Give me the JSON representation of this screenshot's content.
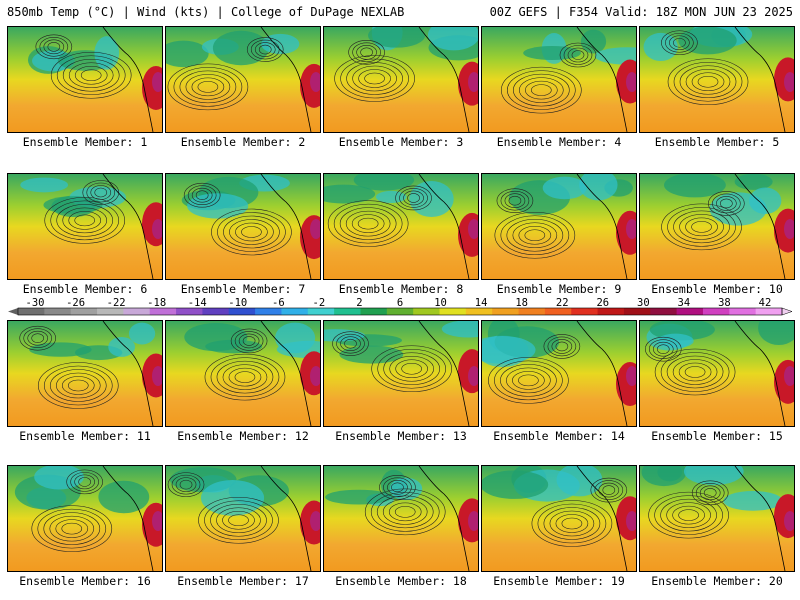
{
  "header": {
    "left": "850mb Temp (°C) | Wind (kts) | College of DuPage NEXLAB",
    "right": "00Z GEFS | F354 Valid: 18Z MON JUN 23 2025"
  },
  "member_label_prefix": "Ensemble Member:",
  "members": [
    "1",
    "2",
    "3",
    "4",
    "5",
    "6",
    "7",
    "8",
    "9",
    "10",
    "11",
    "12",
    "13",
    "14",
    "15",
    "16",
    "17",
    "18",
    "19",
    "20"
  ],
  "colorbar": {
    "tick_labels": [
      "-30",
      "-26",
      "-22",
      "-18",
      "-14",
      "-10",
      "-6",
      "-2",
      "2",
      "6",
      "10",
      "14",
      "18",
      "22",
      "26",
      "30",
      "34",
      "38",
      "42"
    ],
    "colors": [
      "#707070",
      "#8a8a8a",
      "#a0a0a0",
      "#b8b8b8",
      "#c8a8d8",
      "#c070d8",
      "#9050c8",
      "#6040c0",
      "#3050d0",
      "#3080e8",
      "#30b0e8",
      "#40d0d0",
      "#20c090",
      "#20a050",
      "#60b030",
      "#a0c820",
      "#e0e020",
      "#f0c020",
      "#f0a020",
      "#f08020",
      "#f06020",
      "#e03020",
      "#c01818",
      "#a01018",
      "#901040",
      "#b01080",
      "#d040c0",
      "#e070e0",
      "#f0a0f0"
    ]
  }
}
